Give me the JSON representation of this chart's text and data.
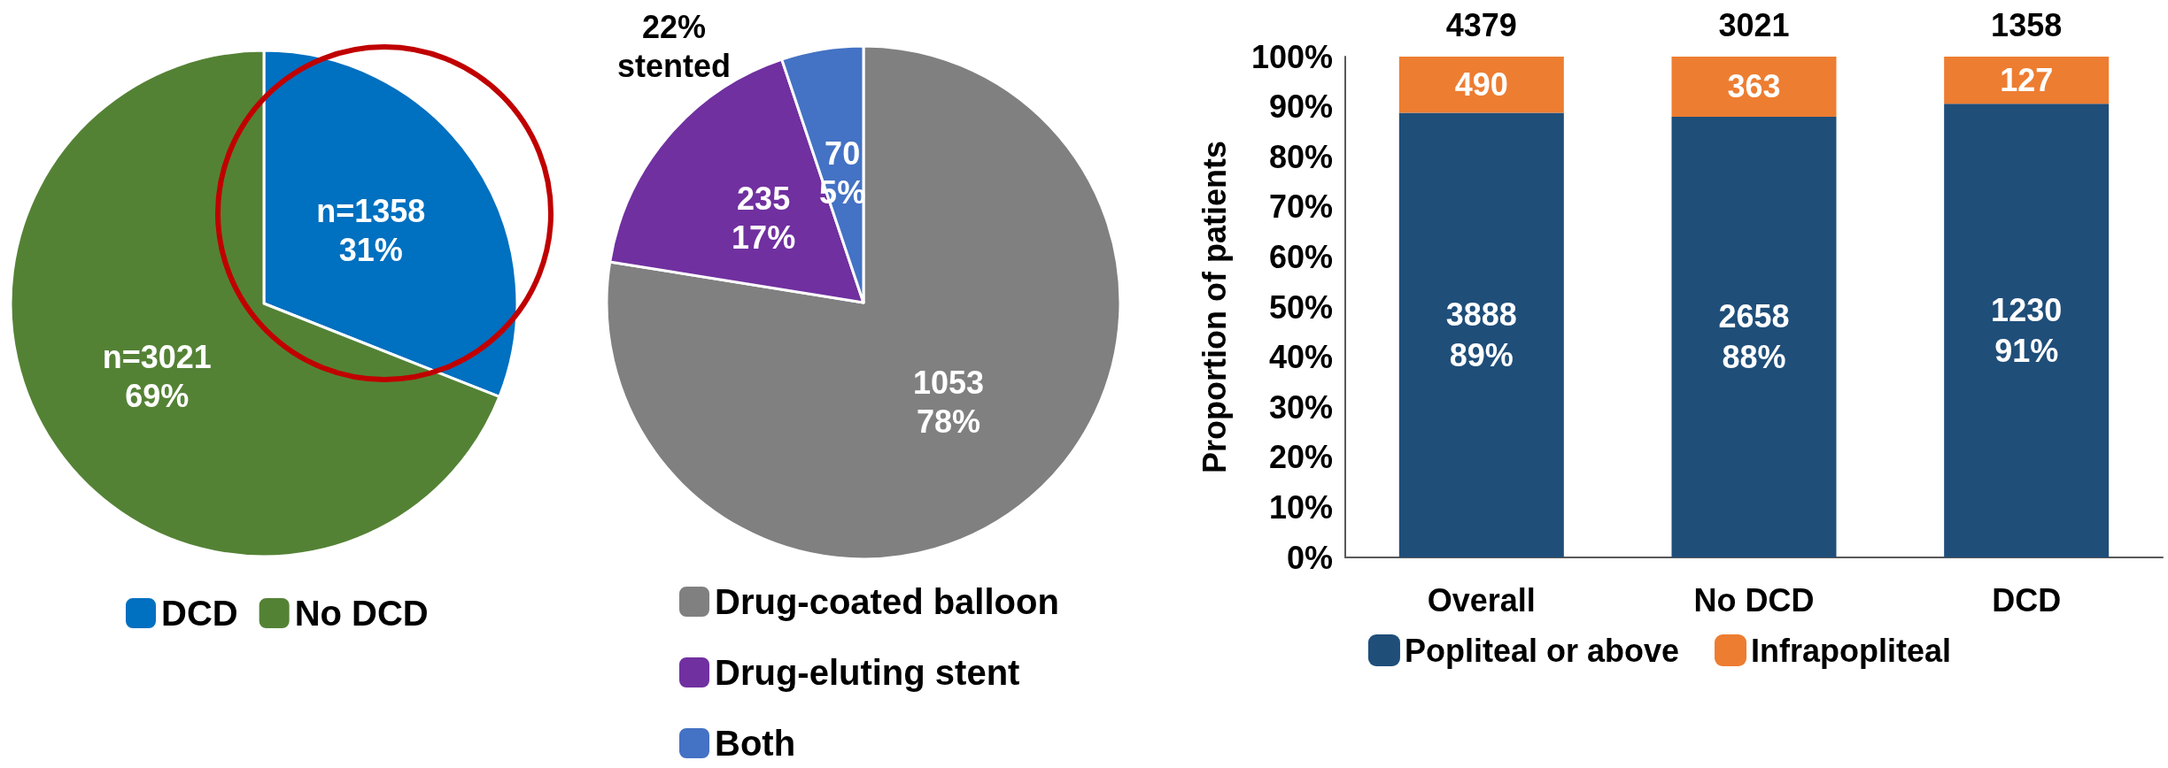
{
  "chart_data": [
    {
      "type": "pie",
      "categories": [
        "DCD",
        "No DCD"
      ],
      "values": [
        1358,
        3021
      ],
      "colors": [
        "#0070c0",
        "#548235"
      ],
      "value_labels": [
        "n=1358\n31%",
        "n=3021\n69%"
      ],
      "legend": "bottom"
    },
    {
      "type": "pie",
      "categories": [
        "Drug-coated balloon",
        "Drug-eluting stent",
        "Both"
      ],
      "values": [
        1053,
        235,
        70
      ],
      "colors": [
        "#808080",
        "#7030a0",
        "#4472c4"
      ],
      "value_labels": [
        "1053\n78%",
        "235\n17%",
        "70\n5%"
      ],
      "annotations": [
        "22%\nstented"
      ],
      "legend": "bottom"
    },
    {
      "type": "bar",
      "stacked": true,
      "categories": [
        "Overall",
        "No DCD",
        "DCD"
      ],
      "ylabel": "Proportion of patients",
      "series": [
        {
          "name": "Popliteal or above",
          "color": "#1f4e79",
          "values": [
            88.8,
            88.0,
            90.6
          ],
          "value_labels": [
            "3888\n89%",
            "2658\n88%",
            "1230\n91%"
          ]
        },
        {
          "name": "Infrapopliteal",
          "color": "#ed7d31",
          "values": [
            11.2,
            12.0,
            9.4
          ]
        }
      ],
      "annotations": [
        {
          "text": "4379",
          "x": "Overall",
          "y": 100
        },
        {
          "text": "3021",
          "x": "No DCD",
          "y": 100
        },
        {
          "text": "1358",
          "x": "DCD",
          "y": 100
        },
        {
          "text": "490",
          "x": "Overall",
          "y": 100
        },
        {
          "text": "363",
          "x": "No DCD",
          "y": 100
        },
        {
          "text": "127",
          "x": "DCD",
          "y": 100
        }
      ],
      "ylim": [
        0,
        100
      ],
      "yticks": [
        {
          "value": 0,
          "label": "0%"
        },
        {
          "value": 10,
          "label": "10%"
        },
        {
          "value": 20,
          "label": "20%"
        },
        {
          "value": 30,
          "label": "30%"
        },
        {
          "value": 40,
          "label": "40%"
        },
        {
          "value": 50,
          "label": "50%"
        },
        {
          "value": 60,
          "label": "60%"
        },
        {
          "value": 70,
          "label": "70%"
        },
        {
          "value": 80,
          "label": "80%"
        },
        {
          "value": 90,
          "label": "90%"
        },
        {
          "value": 100,
          "label": "100%"
        }
      ],
      "grid": false,
      "legend": "bottom"
    }
  ]
}
